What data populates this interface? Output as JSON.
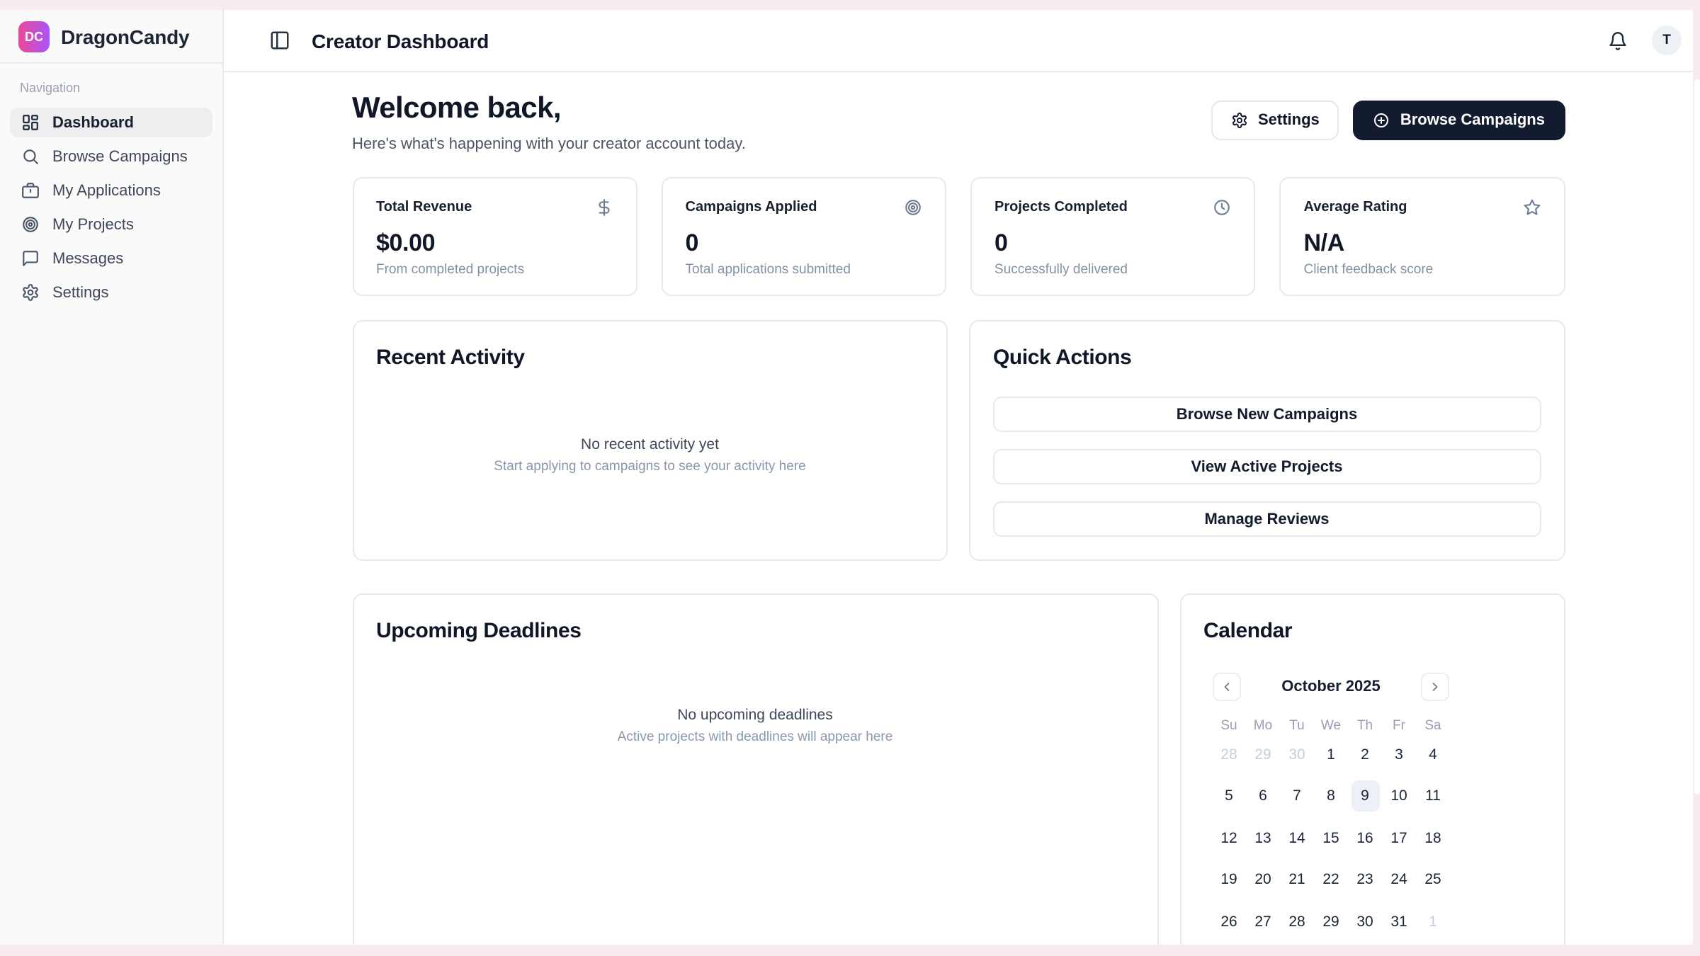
{
  "brand": {
    "initials": "DC",
    "name": "DragonCandy"
  },
  "sidebar": {
    "section_label": "Navigation",
    "items": [
      {
        "label": "Dashboard",
        "icon": "layout-dashboard-icon",
        "active": true
      },
      {
        "label": "Browse Campaigns",
        "icon": "search-icon"
      },
      {
        "label": "My Applications",
        "icon": "briefcase-icon"
      },
      {
        "label": "My Projects",
        "icon": "target-icon"
      },
      {
        "label": "Messages",
        "icon": "message-square-icon"
      },
      {
        "label": "Settings",
        "icon": "gear-icon"
      }
    ]
  },
  "topbar": {
    "title": "Creator Dashboard",
    "avatar_initial": "T"
  },
  "hero": {
    "heading": "Welcome back,",
    "subtext": "Here's what's happening with your creator account today.",
    "settings_label": "Settings",
    "browse_label": "Browse Campaigns"
  },
  "stats": [
    {
      "title": "Total Revenue",
      "icon": "dollar-icon",
      "value": "$0.00",
      "caption": "From completed projects"
    },
    {
      "title": "Campaigns Applied",
      "icon": "target-icon",
      "value": "0",
      "caption": "Total applications submitted"
    },
    {
      "title": "Projects Completed",
      "icon": "clock-icon",
      "value": "0",
      "caption": "Successfully delivered"
    },
    {
      "title": "Average Rating",
      "icon": "star-icon",
      "value": "N/A",
      "caption": "Client feedback score"
    }
  ],
  "recent_activity": {
    "title": "Recent Activity",
    "empty_title": "No recent activity yet",
    "empty_caption": "Start applying to campaigns to see your activity here"
  },
  "quick_actions": {
    "title": "Quick Actions",
    "actions": [
      {
        "label": "Browse New Campaigns"
      },
      {
        "label": "View Active Projects"
      },
      {
        "label": "Manage Reviews"
      }
    ]
  },
  "deadlines": {
    "title": "Upcoming Deadlines",
    "empty_title": "No upcoming deadlines",
    "empty_caption": "Active projects with deadlines will appear here"
  },
  "calendar": {
    "title": "Calendar",
    "month_label": "October 2025",
    "weekdays": [
      "Su",
      "Mo",
      "Tu",
      "We",
      "Th",
      "Fr",
      "Sa"
    ],
    "days": [
      {
        "d": "28",
        "muted": true
      },
      {
        "d": "29",
        "muted": true
      },
      {
        "d": "30",
        "muted": true
      },
      {
        "d": "1"
      },
      {
        "d": "2"
      },
      {
        "d": "3"
      },
      {
        "d": "4"
      },
      {
        "d": "5"
      },
      {
        "d": "6"
      },
      {
        "d": "7"
      },
      {
        "d": "8"
      },
      {
        "d": "9",
        "selected": true
      },
      {
        "d": "10"
      },
      {
        "d": "11"
      },
      {
        "d": "12"
      },
      {
        "d": "13"
      },
      {
        "d": "14"
      },
      {
        "d": "15"
      },
      {
        "d": "16"
      },
      {
        "d": "17"
      },
      {
        "d": "18"
      },
      {
        "d": "19"
      },
      {
        "d": "20"
      },
      {
        "d": "21"
      },
      {
        "d": "22"
      },
      {
        "d": "23"
      },
      {
        "d": "24"
      },
      {
        "d": "25"
      },
      {
        "d": "26"
      },
      {
        "d": "27"
      },
      {
        "d": "28"
      },
      {
        "d": "29"
      },
      {
        "d": "30"
      },
      {
        "d": "31"
      },
      {
        "d": "1",
        "muted": true
      }
    ]
  },
  "colors": {
    "frame_pink": "#f7eaf1",
    "brand_gradient_start": "#ec4899",
    "brand_gradient_end": "#a855f7",
    "dark_button": "#121b30",
    "selected_day_bg": "#edf1f7",
    "sidebar_bg": "#fafafa",
    "card_border": "#e7e9ee"
  }
}
